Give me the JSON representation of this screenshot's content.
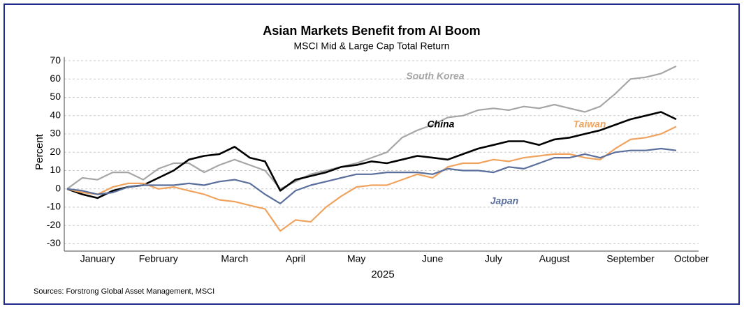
{
  "chart_data": {
    "type": "line",
    "title": "Asian Markets Benefit from AI Boom",
    "subtitle": "MSCI Mid & Large Cap Total Return",
    "y_label": "Percent",
    "x_label": "2025",
    "source": "Sources: Forstrong Global Asset Management, MSCI",
    "categories": [
      null,
      null,
      "January",
      null,
      null,
      null,
      "February",
      null,
      null,
      null,
      null,
      "March",
      null,
      null,
      null,
      "April",
      null,
      null,
      null,
      "May",
      null,
      null,
      null,
      null,
      "June",
      null,
      null,
      null,
      "July",
      null,
      null,
      null,
      "August",
      null,
      null,
      null,
      null,
      "September",
      null,
      null,
      null,
      "October"
    ],
    "ylim": [
      -34,
      72
    ],
    "yticks": [
      -30,
      -20,
      -10,
      0,
      10,
      20,
      30,
      40,
      50,
      60,
      70
    ],
    "grid": true,
    "series": [
      {
        "name": "South Korea",
        "color": "#a6a6a6",
        "values": [
          0,
          6,
          5,
          9,
          9,
          5,
          11,
          14,
          14,
          9,
          13,
          16,
          13,
          10,
          0,
          4,
          8,
          10,
          12,
          14,
          17,
          20,
          28,
          32,
          35,
          39,
          40,
          43,
          44,
          43,
          45,
          44,
          46,
          44,
          42,
          45,
          52,
          60,
          61,
          63,
          67,
          null
        ]
      },
      {
        "name": "China",
        "color": "#000000",
        "values": [
          0,
          -3,
          -5,
          -1,
          1,
          2,
          6,
          10,
          16,
          18,
          19,
          23,
          17,
          15,
          -1,
          5,
          7,
          9,
          12,
          13,
          15,
          14,
          16,
          18,
          17,
          16,
          19,
          22,
          24,
          26,
          26,
          24,
          27,
          28,
          30,
          32,
          35,
          38,
          40,
          42,
          38,
          null
        ]
      },
      {
        "name": "Taiwan",
        "color": "#f0a35e",
        "values": [
          0,
          -2,
          -3,
          1,
          3,
          3,
          0,
          1,
          -1,
          -3,
          -6,
          -7,
          -9,
          -11,
          -23,
          -17,
          -18,
          -10,
          -4,
          1,
          2,
          2,
          5,
          8,
          6,
          12,
          14,
          14,
          16,
          15,
          17,
          18,
          19,
          19,
          17,
          16,
          22,
          27,
          28,
          30,
          34,
          null
        ]
      },
      {
        "name": "Japan",
        "color": "#5b6f9d",
        "values": [
          0,
          -1,
          -3,
          -2,
          1,
          2,
          2,
          2,
          3,
          2,
          4,
          5,
          3,
          -3,
          -8,
          -1,
          2,
          4,
          6,
          8,
          8,
          9,
          9,
          9,
          8,
          11,
          10,
          10,
          9,
          12,
          11,
          14,
          17,
          17,
          19,
          17,
          20,
          21,
          21,
          22,
          21,
          null
        ]
      }
    ]
  }
}
